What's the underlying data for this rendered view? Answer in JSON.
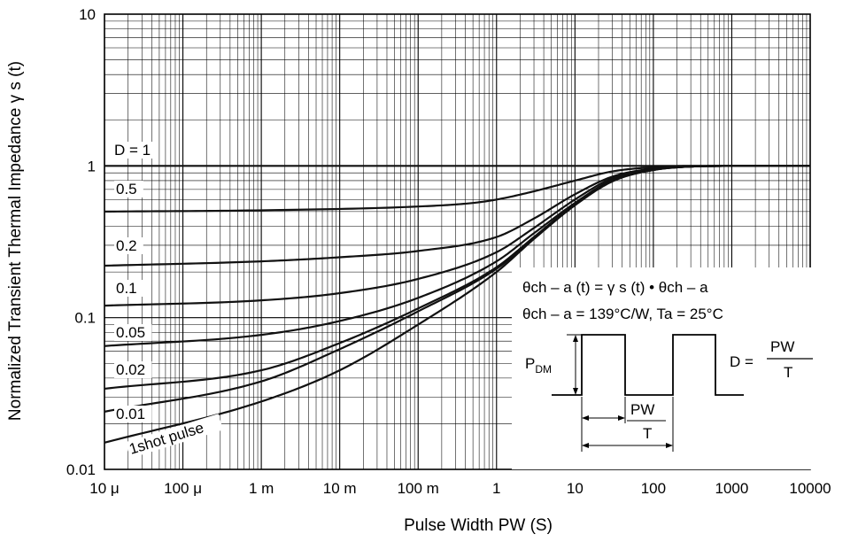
{
  "chart_data": {
    "type": "line",
    "title": "",
    "xlabel": "Pulse Width   PW  (S)",
    "ylabel": "Normalized Transient Thermal Impedance   γ s  (t)",
    "xscale": "log",
    "yscale": "log",
    "xlim": [
      1e-05,
      10000
    ],
    "ylim": [
      0.01,
      10
    ],
    "grid": true,
    "x_ticks": [
      {
        "value": 1e-05,
        "label": "10 μ"
      },
      {
        "value": 0.0001,
        "label": "100 μ"
      },
      {
        "value": 0.001,
        "label": "1 m"
      },
      {
        "value": 0.01,
        "label": "10 m"
      },
      {
        "value": 0.1,
        "label": "100 m"
      },
      {
        "value": 1,
        "label": "1"
      },
      {
        "value": 10,
        "label": "10"
      },
      {
        "value": 100,
        "label": "100"
      },
      {
        "value": 1000,
        "label": "1000"
      },
      {
        "value": 10000,
        "label": "10000"
      }
    ],
    "y_ticks": [
      {
        "value": 0.01,
        "label": "0.01"
      },
      {
        "value": 0.1,
        "label": "0.1"
      },
      {
        "value": 1,
        "label": "1"
      },
      {
        "value": 10,
        "label": "10"
      }
    ],
    "series": [
      {
        "name": "D = 1",
        "points": [
          [
            1e-05,
            1
          ],
          [
            10000,
            1
          ]
        ]
      },
      {
        "name": "0.5",
        "points": [
          [
            1e-05,
            0.5
          ],
          [
            0.001,
            0.51
          ],
          [
            0.1,
            0.54
          ],
          [
            0.5,
            0.57
          ],
          [
            1,
            0.6
          ],
          [
            3,
            0.68
          ],
          [
            10,
            0.8
          ],
          [
            30,
            0.92
          ],
          [
            100,
            0.98
          ],
          [
            300,
            1.0
          ],
          [
            1000,
            1.0
          ]
        ]
      },
      {
        "name": "0.2",
        "points": [
          [
            1e-05,
            0.22
          ],
          [
            0.001,
            0.235
          ],
          [
            0.01,
            0.25
          ],
          [
            0.1,
            0.275
          ],
          [
            1,
            0.34
          ],
          [
            3,
            0.45
          ],
          [
            10,
            0.65
          ],
          [
            30,
            0.85
          ],
          [
            100,
            0.96
          ],
          [
            300,
            0.99
          ],
          [
            1000,
            1.0
          ]
        ]
      },
      {
        "name": "0.1",
        "points": [
          [
            1e-05,
            0.12
          ],
          [
            0.001,
            0.13
          ],
          [
            0.01,
            0.145
          ],
          [
            0.1,
            0.18
          ],
          [
            1,
            0.27
          ],
          [
            3,
            0.39
          ],
          [
            10,
            0.6
          ],
          [
            30,
            0.83
          ],
          [
            100,
            0.95
          ],
          [
            300,
            0.99
          ],
          [
            1000,
            1.0
          ]
        ]
      },
      {
        "name": "0.05",
        "points": [
          [
            1e-05,
            0.065
          ],
          [
            0.001,
            0.077
          ],
          [
            0.01,
            0.095
          ],
          [
            0.1,
            0.135
          ],
          [
            1,
            0.235
          ],
          [
            3,
            0.36
          ],
          [
            10,
            0.57
          ],
          [
            30,
            0.81
          ],
          [
            100,
            0.95
          ],
          [
            300,
            0.99
          ],
          [
            1000,
            1.0
          ]
        ]
      },
      {
        "name": "0.02",
        "points": [
          [
            1e-05,
            0.034
          ],
          [
            0.001,
            0.045
          ],
          [
            0.01,
            0.068
          ],
          [
            0.1,
            0.115
          ],
          [
            1,
            0.215
          ],
          [
            3,
            0.34
          ],
          [
            10,
            0.56
          ],
          [
            30,
            0.8
          ],
          [
            100,
            0.94
          ],
          [
            300,
            0.99
          ],
          [
            1000,
            1.0
          ]
        ]
      },
      {
        "name": "0.01",
        "points": [
          [
            1e-05,
            0.024
          ],
          [
            0.001,
            0.038
          ],
          [
            0.01,
            0.062
          ],
          [
            0.1,
            0.11
          ],
          [
            1,
            0.21
          ],
          [
            3,
            0.335
          ],
          [
            10,
            0.555
          ],
          [
            30,
            0.8
          ],
          [
            100,
            0.94
          ],
          [
            300,
            0.99
          ],
          [
            1000,
            1.0
          ]
        ]
      },
      {
        "name": "1shot pulse",
        "points": [
          [
            1e-05,
            0.015
          ],
          [
            0.001,
            0.028
          ],
          [
            0.01,
            0.045
          ],
          [
            0.1,
            0.09
          ],
          [
            1,
            0.2
          ],
          [
            3,
            0.33
          ],
          [
            10,
            0.55
          ],
          [
            30,
            0.79
          ],
          [
            100,
            0.94
          ],
          [
            300,
            0.99
          ],
          [
            1000,
            1.0
          ]
        ]
      }
    ],
    "inset": {
      "formula_line1": "θch – a (t) = γ s (t) •  θch – a",
      "formula_line2": "θch – a = 139°C/W, Ta = 25°C",
      "pdm_label": "P",
      "pdm_sub": "DM",
      "duty_label": "D =",
      "duty_num": "PW",
      "duty_den": "T",
      "pw_label": "PW",
      "t_label": "T"
    }
  }
}
